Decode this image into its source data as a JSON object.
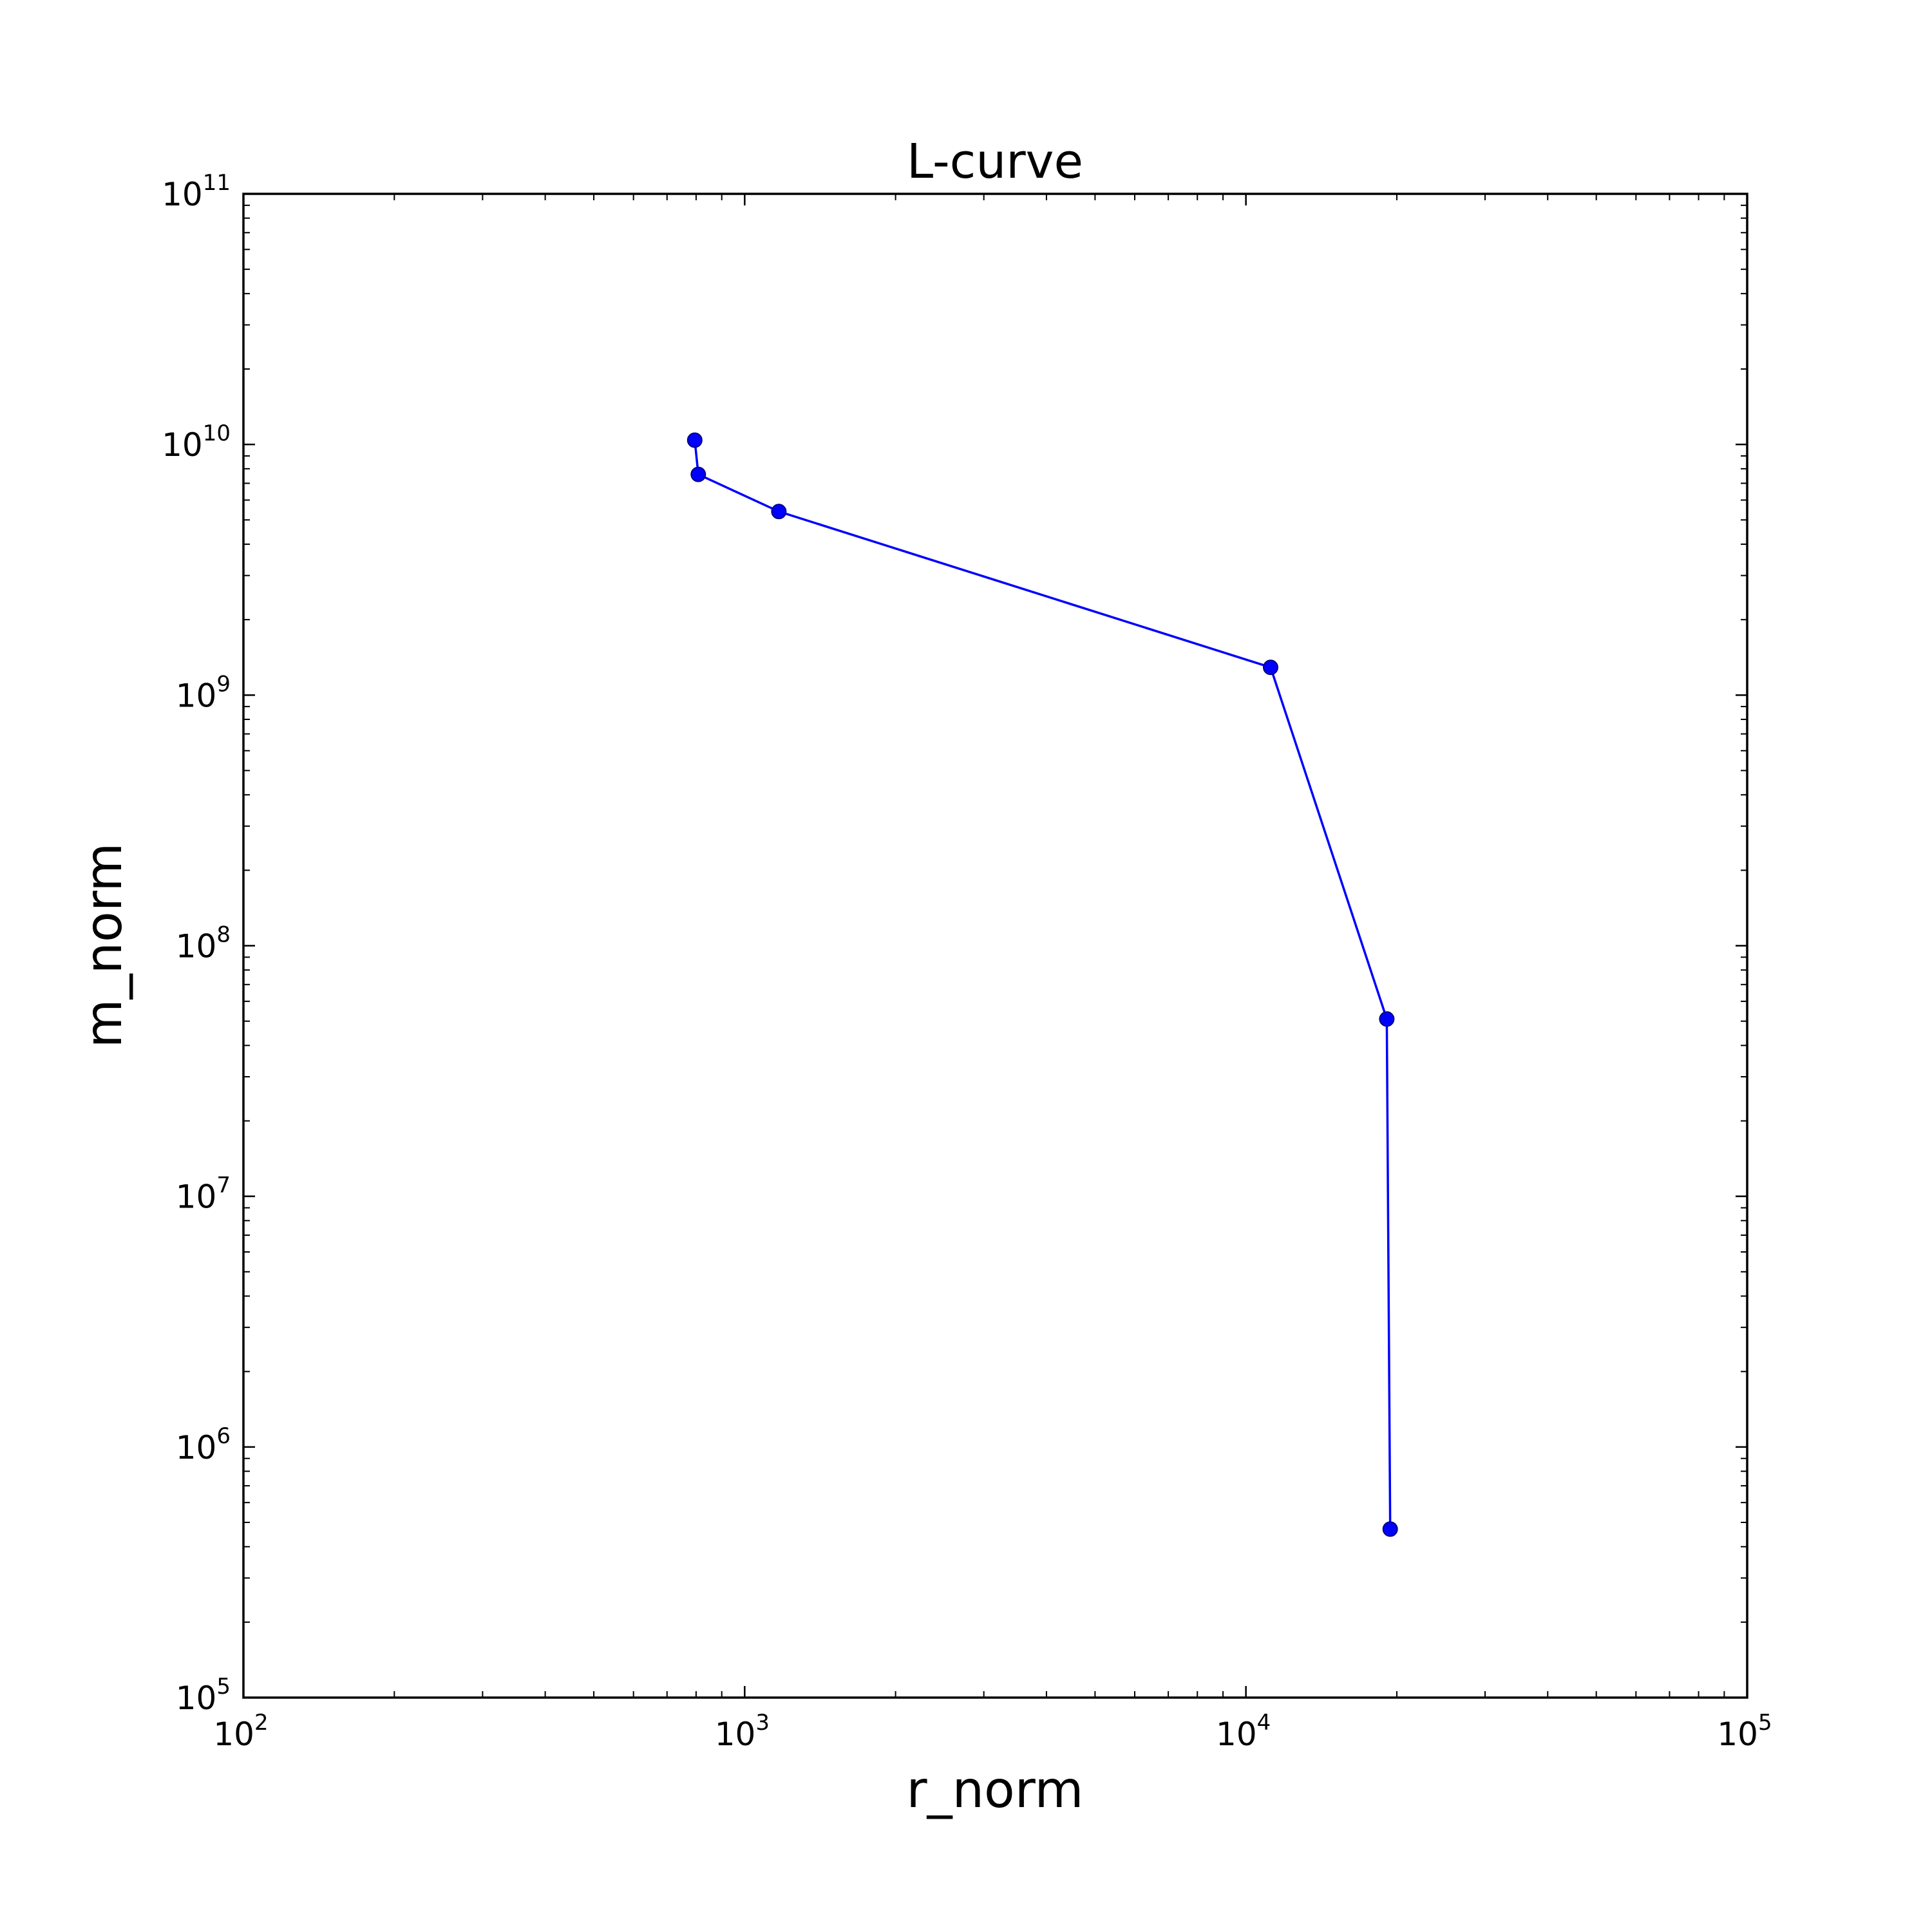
{
  "chart_data": {
    "type": "line",
    "title": "L-curve",
    "xlabel": "r_norm",
    "ylabel": "m_norm",
    "xscale": "log",
    "yscale": "log",
    "xlim": [
      100,
      100000
    ],
    "ylim": [
      100000,
      100000000000
    ],
    "grid": false,
    "legend": "none",
    "colors": {
      "line": "#0000ff",
      "marker_fill": "#0000ff",
      "marker_edge": "#000080",
      "axes": "#000000"
    },
    "x_ticks": [
      {
        "base": "10",
        "exp": "2",
        "value": 100
      },
      {
        "base": "10",
        "exp": "3",
        "value": 1000
      },
      {
        "base": "10",
        "exp": "4",
        "value": 10000
      },
      {
        "base": "10",
        "exp": "5",
        "value": 100000
      }
    ],
    "y_ticks": [
      {
        "base": "10",
        "exp": "5",
        "value": 100000
      },
      {
        "base": "10",
        "exp": "6",
        "value": 1000000
      },
      {
        "base": "10",
        "exp": "7",
        "value": 10000000
      },
      {
        "base": "10",
        "exp": "8",
        "value": 100000000
      },
      {
        "base": "10",
        "exp": "9",
        "value": 1000000000
      },
      {
        "base": "10",
        "exp": "10",
        "value": 10000000000
      },
      {
        "base": "10",
        "exp": "11",
        "value": 100000000000
      }
    ],
    "series": [
      {
        "x": [
          795,
          808,
          1170,
          11200,
          19100,
          19400
        ],
        "y": [
          10400000000,
          7600000000,
          5400000000,
          1290000000,
          51000000,
          470000
        ]
      }
    ]
  }
}
